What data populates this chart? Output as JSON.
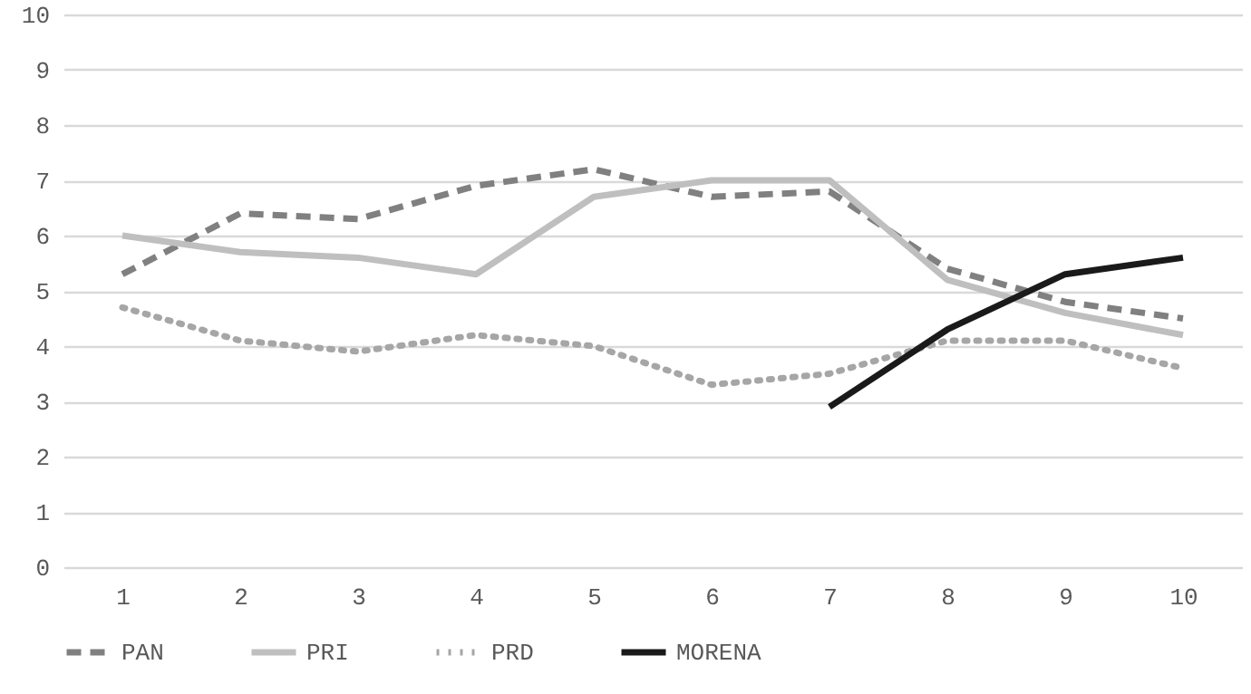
{
  "chart_data": {
    "type": "line",
    "categories": [
      "1",
      "2",
      "3",
      "4",
      "5",
      "6",
      "7",
      "8",
      "9",
      "10"
    ],
    "series": [
      {
        "name": "PAN",
        "color": "#808080",
        "line_style": "dashed",
        "values": [
          5.3,
          6.4,
          6.3,
          6.9,
          7.2,
          6.7,
          6.8,
          5.4,
          4.8,
          4.5
        ]
      },
      {
        "name": "PRI",
        "color": "#bfbfbf",
        "line_style": "solid",
        "values": [
          6.0,
          5.7,
          5.6,
          5.3,
          6.7,
          7.0,
          7.0,
          5.2,
          4.6,
          4.2
        ]
      },
      {
        "name": "PRD",
        "color": "#a6a6a6",
        "line_style": "dotted",
        "values": [
          4.7,
          4.1,
          3.9,
          4.2,
          4.0,
          3.3,
          3.5,
          4.1,
          4.1,
          3.6
        ]
      },
      {
        "name": "MORENA",
        "color": "#1a1a1a",
        "line_style": "solid",
        "values": [
          null,
          null,
          null,
          null,
          null,
          null,
          2.9,
          4.3,
          5.3,
          5.6
        ]
      }
    ],
    "ylim": [
      0,
      10
    ],
    "yticks": [
      0,
      1,
      2,
      3,
      4,
      5,
      6,
      7,
      8,
      9,
      10
    ],
    "grid": "y",
    "legend": "bottom",
    "marker": "none"
  }
}
